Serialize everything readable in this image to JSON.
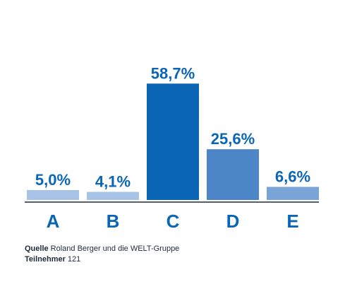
{
  "chart_data": {
    "type": "bar",
    "categories": [
      "A",
      "B",
      "C",
      "D",
      "E"
    ],
    "values": [
      5.0,
      4.1,
      58.7,
      25.6,
      6.6
    ],
    "value_labels": [
      "5,0%",
      "4,1%",
      "58,7%",
      "25,6%",
      "6,6%"
    ],
    "colors": [
      "#a7c4e6",
      "#a7c4e6",
      "#0a66b5",
      "#4c86c6",
      "#7aa4d6"
    ],
    "ylim": [
      0,
      60
    ],
    "grid": false
  },
  "footer": {
    "source_label": "Quelle",
    "source_text": " Roland Berger und die WELT-Gruppe",
    "participants_label": "Teilnehmer",
    "participants_value": " 121"
  },
  "colors": {
    "label_text": "#0a66b5",
    "axis": "#1e2a3a"
  }
}
